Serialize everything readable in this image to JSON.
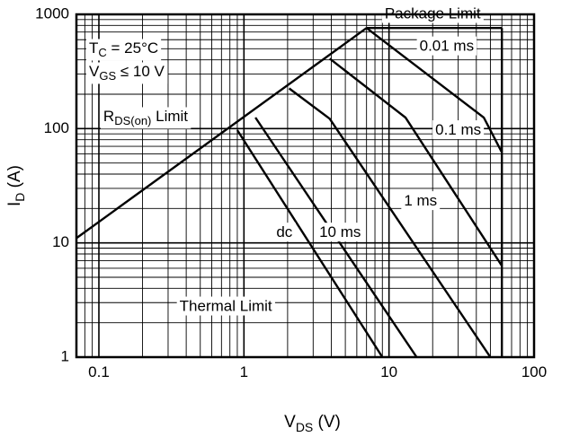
{
  "chart_data": {
    "type": "line",
    "xscale": "log",
    "yscale": "log",
    "xlim": [
      0.07,
      100
    ],
    "ylim": [
      1,
      1000
    ],
    "grid": true,
    "xlabel": {
      "base": "V",
      "sub": "DS",
      "unit": " (V)"
    },
    "ylabel": {
      "base": "I",
      "sub": "D",
      "unit": " (A)"
    },
    "xticks": [
      {
        "v": 0.1,
        "label": "0.1"
      },
      {
        "v": 1,
        "label": "1"
      },
      {
        "v": 10,
        "label": "10"
      },
      {
        "v": 100,
        "label": "100"
      }
    ],
    "yticks": [
      {
        "v": 1,
        "label": "1"
      },
      {
        "v": 10,
        "label": "10"
      },
      {
        "v": 100,
        "label": "100"
      },
      {
        "v": 1000,
        "label": "1000"
      }
    ],
    "conditions": {
      "tc": {
        "pre": "T",
        "sub": "C",
        "post": " = 25°C"
      },
      "vgs": {
        "pre": "V",
        "sub": "GS",
        "post": " ≤ 10 V"
      }
    },
    "series": [
      {
        "name": "RDS(on) Limit",
        "points": [
          [
            0.07,
            11
          ],
          [
            7,
            760
          ]
        ]
      },
      {
        "name": "Package Limit",
        "points": [
          [
            7,
            760
          ],
          [
            60,
            760
          ]
        ]
      },
      {
        "name": "Thermal Limit",
        "points": [
          [
            60,
            760
          ],
          [
            60,
            1
          ]
        ]
      },
      {
        "name": "0.01 ms",
        "points": [
          [
            7,
            760
          ],
          [
            45,
            125
          ],
          [
            60,
            62
          ]
        ]
      },
      {
        "name": "0.1 ms",
        "points": [
          [
            3.9,
            410
          ],
          [
            13,
            125
          ],
          [
            60,
            6.3
          ]
        ]
      },
      {
        "name": "1 ms",
        "points": [
          [
            2.05,
            225
          ],
          [
            3.9,
            122
          ],
          [
            50,
            1
          ]
        ]
      },
      {
        "name": "10 ms",
        "points": [
          [
            1.2,
            125
          ],
          [
            15.5,
            1
          ]
        ]
      },
      {
        "name": "dc",
        "points": [
          [
            0.9,
            97
          ],
          [
            9,
            1
          ]
        ]
      }
    ],
    "annotations": [
      {
        "id": "package-limit",
        "text": "Package Limit",
        "x": 20,
        "y": 1000
      },
      {
        "id": "0-01ms",
        "text": "0.01 ms",
        "x": 25,
        "y": 520
      },
      {
        "id": "0-1ms",
        "text": "0.1 ms",
        "x": 30,
        "y": 96
      },
      {
        "id": "1ms",
        "text": "1 ms",
        "x": 16.5,
        "y": 23
      },
      {
        "id": "10ms",
        "text": "10 ms",
        "x": 4.6,
        "y": 12.2
      },
      {
        "id": "dc",
        "text": "dc",
        "x": 1.9,
        "y": 12.2
      },
      {
        "id": "thermal-limit",
        "text": "Thermal Limit",
        "x": 0.75,
        "y": 2.75
      }
    ],
    "rdson_label": {
      "pre": "R",
      "sub": "DS(on)",
      "post": " Limit",
      "x": 0.21,
      "y": 125
    }
  }
}
